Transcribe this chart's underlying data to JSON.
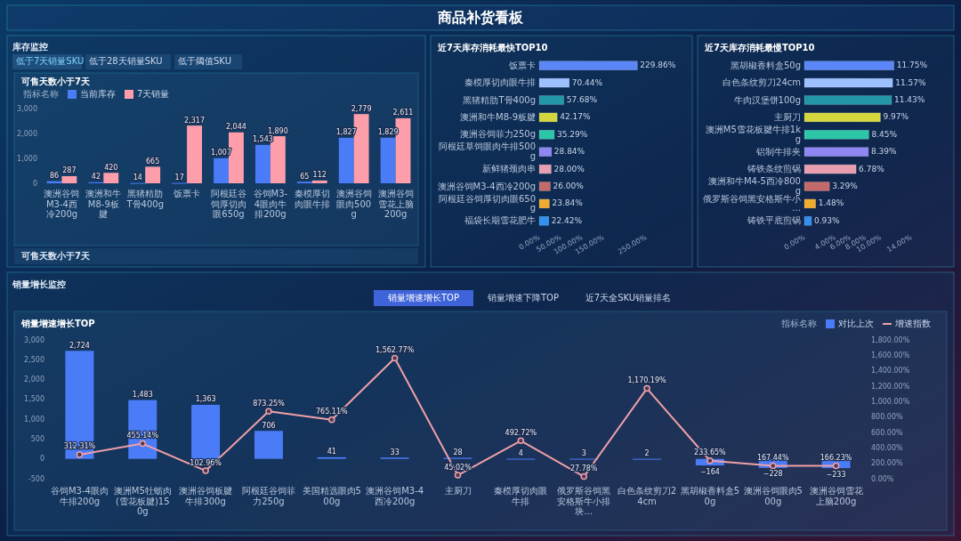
{
  "chart_data": [
    {
      "type": "bar",
      "title": "可售天数小于7天",
      "categories": [
        "澳洲谷饲M3-4西冷200g",
        "澳洲和牛M8-9板腱",
        "黑猪精肋T骨400g",
        "饭票卡",
        "阿根廷谷饲厚切肉眼650g",
        "谷饲M3-4眼肉牛排200g",
        "秦模厚切肉眼牛排",
        "澳洲谷饲眼肉500g",
        "澳洲谷饲雪花上脑200g"
      ],
      "series": [
        {
          "name": "当前库存",
          "color": "#4a7cf7",
          "values": [
            86,
            42,
            14,
            17,
            1007,
            1543,
            65,
            1827,
            1829
          ],
          "value_labels": [
            "86",
            "42",
            "14",
            "17",
            "1,007",
            "1,543",
            "65",
            "1,827",
            "1,829"
          ]
        },
        {
          "name": "7天销量",
          "color": "#ff9eab",
          "values": [
            287,
            420,
            665,
            2317,
            2044,
            1890,
            112,
            2779,
            2611
          ],
          "value_labels": [
            "287",
            "420",
            "665",
            "2,317",
            "2,044",
            "1,890",
            "112",
            "2,779",
            "2,611"
          ]
        }
      ],
      "ylim": [
        0,
        3000
      ],
      "yticks": [
        0,
        {
          "value": 1000,
          "label": "1,000"
        },
        {
          "value": 2000,
          "label": "2,000"
        },
        {
          "value": 3000,
          "label": "3,000"
        }
      ],
      "legend": "top left",
      "legend_title": "指标名称",
      "annotations": [
        "商品补货看板",
        "库存监控",
        "低于7天销量SKU",
        "低于28天销量SKU",
        "低于阈值SKU",
        "可售天数小于7天"
      ]
    },
    {
      "type": "bar",
      "orientation": "horizontal",
      "title": "近7天库存消耗最快TOP10",
      "categories": [
        "饭票卡",
        "秦模厚切肉眼牛排",
        "黑猪精肋T骨400g",
        "澳洲和牛M8-9板腱",
        "澳洲谷饲菲力250g",
        "阿根廷草饲眼肉牛排500g",
        "新鲜猪颈肉串",
        "澳洲谷饲M3-4西冷200g",
        "阿根廷谷饲厚切肉眼650g",
        "福袋长期雪花肥牛"
      ],
      "values": [
        229.86,
        70.44,
        57.68,
        42.17,
        35.29,
        28.84,
        28.0,
        26.0,
        23.84,
        22.42
      ],
      "value_labels": [
        "229.86%",
        "70.44%",
        "57.68%",
        "42.17%",
        "35.29%",
        "28.84%",
        "28.00%",
        "26.00%",
        "23.84%",
        "22.42%"
      ],
      "colors": [
        "#5b86f7",
        "#9dc1ff",
        "#2297a5",
        "#d4d63e",
        "#2ec6a8",
        "#8f86f2",
        "#e79fb0",
        "#c46a6a",
        "#f1ab2f",
        "#3390ee"
      ],
      "xlim": [
        0,
        250
      ],
      "xticks": [
        {
          "value": 0,
          "label": "0.00%"
        },
        {
          "value": 50,
          "label": "50.00%"
        },
        {
          "value": 100,
          "label": "100.00%"
        },
        {
          "value": 150,
          "label": "150.00%"
        },
        {
          "value": 250,
          "label": "250.00%"
        }
      ]
    },
    {
      "type": "bar",
      "orientation": "horizontal",
      "title": "近7天库存消耗最慢TOP10",
      "categories": [
        "黑胡椒香料盒50g",
        "白色条纹剪刀24cm",
        "牛肉汉堡饼100g",
        "主厨刀",
        "澳洲M5雪花板腱牛排1kg",
        "铝制牛排夹",
        "铸铁条纹煎锅",
        "澳洲和牛M4-5西冷800g",
        "俄罗斯谷饲黑安格斯牛小…",
        "铸铁平底煎锅"
      ],
      "values": [
        11.75,
        11.57,
        11.43,
        9.97,
        8.45,
        8.39,
        6.78,
        3.29,
        1.48,
        0.93
      ],
      "value_labels": [
        "11.75%",
        "11.57%",
        "11.43%",
        "9.97%",
        "8.45%",
        "8.39%",
        "6.78%",
        "3.29%",
        "1.48%",
        "0.93%"
      ],
      "colors": [
        "#5b86f7",
        "#9dc1ff",
        "#2297a5",
        "#d4d63e",
        "#2ec6a8",
        "#8f86f2",
        "#e79fb0",
        "#c46a6a",
        "#f1ab2f",
        "#3390ee"
      ],
      "xlim": [
        0,
        14
      ],
      "xticks": [
        {
          "value": 0,
          "label": "0.00%"
        },
        {
          "value": 4,
          "label": "4.00%"
        },
        {
          "value": 6,
          "label": "6.00%"
        },
        {
          "value": 8,
          "label": "8.00%"
        },
        {
          "value": 10,
          "label": "10.00%"
        },
        {
          "value": 14,
          "label": "14.00%"
        }
      ]
    },
    {
      "type": "bar",
      "title": "销量增速增长TOP",
      "categories": [
        "谷饲M3-4眼肉牛排200g",
        "澳洲M5牡蛎肉(雪花板腱)150g",
        "澳洲谷饲板腱牛排300g",
        "阿根廷谷饲菲力250g",
        "美国精选眼肉500g",
        "澳洲谷饲M3-4西冷200g",
        "主厨刀",
        "秦模厚切肉眼牛排",
        "俄罗斯谷饲黑安格斯牛小排块…",
        "白色条纹剪刀24cm",
        "黑胡椒香料盒50g",
        "澳洲谷饲眼肉500g",
        "澳洲谷饲雪花上脑200g"
      ],
      "series": [
        {
          "name": "对比上次",
          "type": "bar",
          "color": "#4a7cf7",
          "values": [
            2724,
            1483,
            1363,
            706,
            41,
            33,
            28,
            4,
            3,
            2,
            -164,
            -228,
            -233
          ],
          "value_labels": [
            "2,724",
            "1,483",
            "1,363",
            "706",
            "41",
            "33",
            "28",
            "4",
            "3",
            "2",
            "−164",
            "−228",
            "−233"
          ]
        },
        {
          "name": "增速指数",
          "type": "line",
          "axis": "y2",
          "color": "#f0a0a8",
          "marker": "circle",
          "values": [
            312.31,
            455.14,
            102.96,
            873.25,
            765.11,
            1562.77,
            45.02,
            492.72,
            27.78,
            1170.19,
            233.65,
            167.44,
            166.23
          ],
          "value_labels": [
            "312.31%",
            "455.14%",
            "102.96%",
            "873.25%",
            "765.11%",
            "1,562.77%",
            "45.02%",
            "492.72%",
            "27.78%",
            "1,170.19%",
            "233.65%",
            "167.44%",
            "166.23%"
          ]
        }
      ],
      "ylim": [
        -500,
        3000
      ],
      "yticks": [
        -500,
        0,
        500,
        {
          "value": 1000,
          "label": "1,000"
        },
        {
          "value": 1500,
          "label": "1,500"
        },
        {
          "value": 2000,
          "label": "2,000"
        },
        {
          "value": 2500,
          "label": "2,500"
        },
        {
          "value": 3000,
          "label": "3,000"
        }
      ],
      "y2lim": [
        0,
        1800
      ],
      "y2ticks": [
        {
          "value": 0,
          "label": "0.00%"
        },
        {
          "value": 200,
          "label": "200.00%"
        },
        {
          "value": 400,
          "label": "400.00%"
        },
        {
          "value": 600,
          "label": "600.00%"
        },
        {
          "value": 800,
          "label": "800.00%"
        },
        {
          "value": 1000,
          "label": "1,000.00%"
        },
        {
          "value": 1200,
          "label": "1,200.00%"
        },
        {
          "value": 1400,
          "label": "1,400.00%"
        },
        {
          "value": 1600,
          "label": "1,600.00%"
        },
        {
          "value": 1800,
          "label": "1,800.00%"
        }
      ],
      "legend": "top right",
      "legend_title": "指标名称",
      "annotations": [
        "销量增长监控",
        "销量增速增长TOP",
        "销量增速下降TOP",
        "近7天全SKU销量排名"
      ]
    }
  ]
}
